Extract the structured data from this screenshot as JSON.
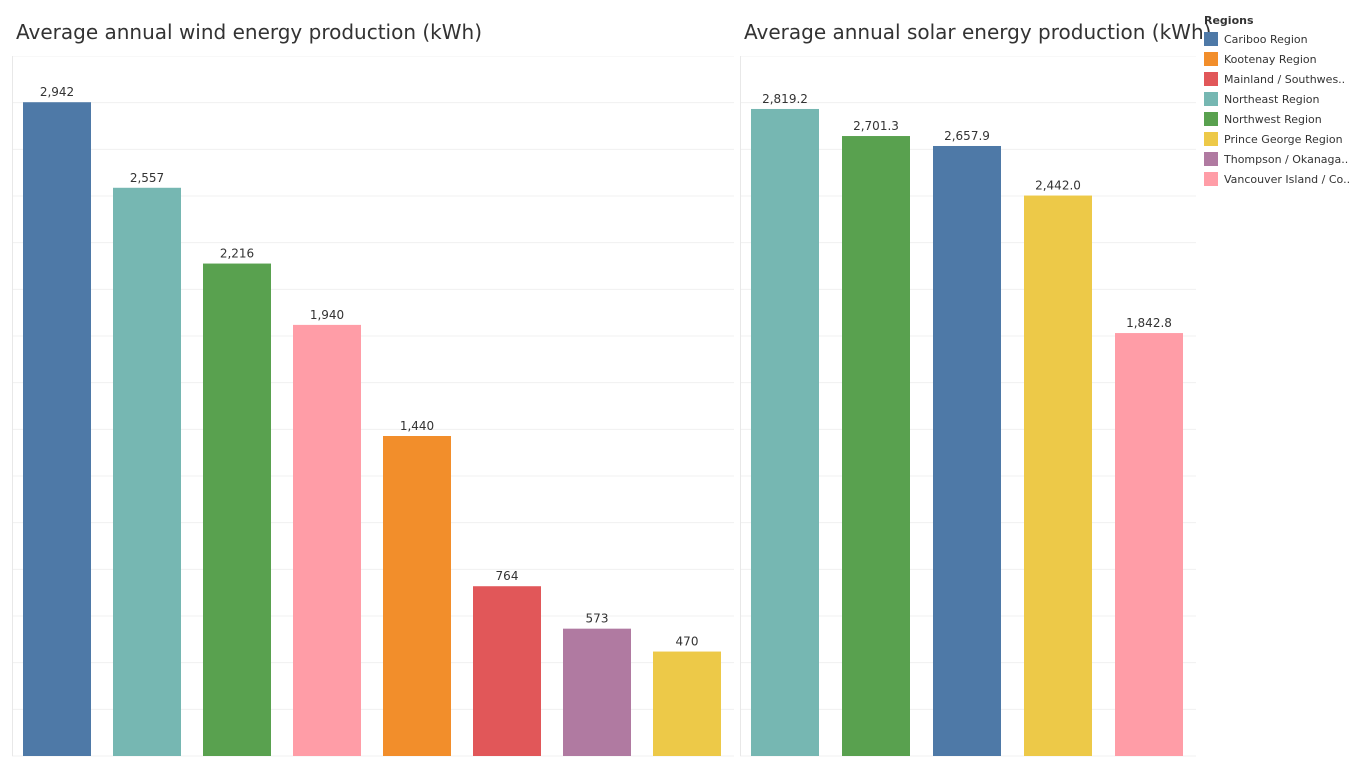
{
  "legend": {
    "title": "Regions",
    "items": [
      {
        "label": "Cariboo Region",
        "color": "#4e79a7"
      },
      {
        "label": "Kootenay Region",
        "color": "#f28e2b"
      },
      {
        "label": "Mainland / Southwes..",
        "color": "#e15759"
      },
      {
        "label": "Northeast Region",
        "color": "#76b7b2"
      },
      {
        "label": "Northwest Region",
        "color": "#59a14f"
      },
      {
        "label": "Prince George Region",
        "color": "#edc948"
      },
      {
        "label": "Thompson / Okanaga..",
        "color": "#b07aa1"
      },
      {
        "label": "Vancouver Island / Co..",
        "color": "#ff9da7"
      }
    ]
  },
  "chart_data": [
    {
      "type": "bar",
      "title": "Average annual wind energy production (kWh)",
      "categories": [
        "Cariboo Region",
        "Northeast Region",
        "Northwest Region",
        "Vancouver Island / Co..",
        "Kootenay Region",
        "Mainland / Southwes..",
        "Thompson / Okanaga..",
        "Prince George Region"
      ],
      "values": [
        2942,
        2557,
        2216,
        1940,
        1440,
        764,
        573,
        470
      ],
      "value_labels": [
        "2,942",
        "2,557",
        "2,216",
        "1,940",
        "1,440",
        "764",
        "573",
        "470"
      ],
      "colors": [
        "#4e79a7",
        "#76b7b2",
        "#59a14f",
        "#ff9da7",
        "#f28e2b",
        "#e15759",
        "#b07aa1",
        "#edc948"
      ],
      "ylim": [
        0,
        3150
      ],
      "grid": true
    },
    {
      "type": "bar",
      "title": "Average annual solar energy production (kWh)",
      "categories": [
        "Northeast Region",
        "Northwest Region",
        "Cariboo Region",
        "Prince George Region",
        "Vancouver Island / Co.."
      ],
      "values": [
        2819.2,
        2701.3,
        2657.9,
        2442.0,
        1842.8
      ],
      "value_labels": [
        "2,819.2",
        "2,701.3",
        "2,657.9",
        "2,442.0",
        "1,842.8"
      ],
      "colors": [
        "#76b7b2",
        "#59a14f",
        "#4e79a7",
        "#edc948",
        "#ff9da7"
      ],
      "ylim": [
        0,
        3050
      ],
      "grid": true
    }
  ]
}
